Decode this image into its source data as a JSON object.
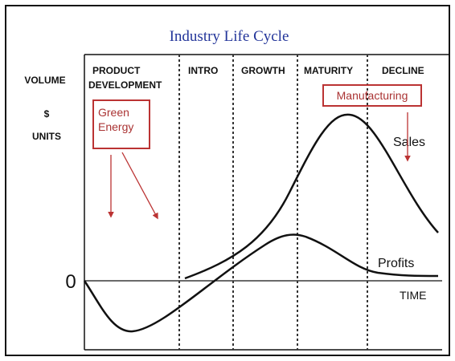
{
  "title": "Industry Life Cycle",
  "stages": [
    [
      "PRODUCT",
      "DEVELOPMENT"
    ],
    [
      "INTRO"
    ],
    [
      "GROWTH"
    ],
    [
      "MATURITY"
    ],
    [
      "DECLINE"
    ]
  ],
  "y_axis_labels": [
    "VOLUME",
    "$",
    "UNITS"
  ],
  "origin_label": "0",
  "x_axis_label": "TIME",
  "curves": {
    "sales": "Sales",
    "profits": "Profits"
  },
  "annotations": [
    [
      "Green",
      "Energy"
    ],
    [
      "Manufacturing"
    ]
  ]
}
